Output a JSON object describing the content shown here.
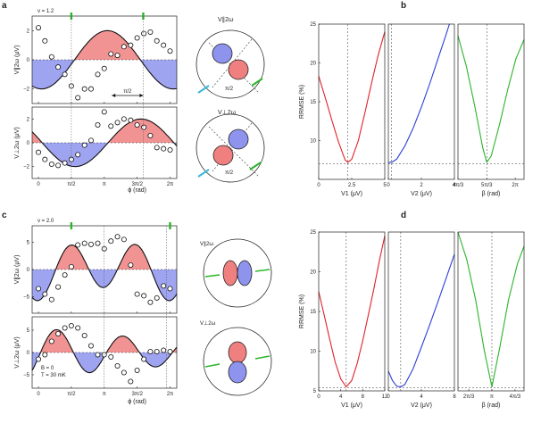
{
  "panels": {
    "a": "a",
    "b": "b",
    "c": "c",
    "d": "d"
  },
  "nu_a": "ν = 1.2",
  "nu_c": "ν = 2.0",
  "ylab_par": "V∥2ω (μV)",
  "ylab_perp": "V⊥2ω (μV)",
  "xlabel_phi": "ϕ (rad)",
  "phi_ticks": [
    "0",
    "π/2",
    "π",
    "3π/2",
    "2π"
  ],
  "a_top_yticks": [
    "2",
    "0",
    "−2"
  ],
  "a_bot_yticks": [
    "2",
    "0",
    "−2"
  ],
  "c_top_yticks": [
    "5",
    "0",
    "−5"
  ],
  "c_bot_yticks": [
    "5",
    "0",
    "−5"
  ],
  "pi2_label": "π/2",
  "circle_par_a": "V∥2ω",
  "circle_perp_a": "V⊥2ω",
  "circle_par_c": "V∥2ω",
  "circle_perp_c": "V⊥2ω",
  "circle_pi2": "π/2",
  "c_params": [
    "B = 0",
    "T = 30 mK"
  ],
  "rrmse_label": "RRMSE (%)",
  "b_yticks": [
    "25",
    "20",
    "15",
    "10"
  ],
  "d_yticks": [
    "25",
    "20",
    "15",
    "10",
    "5"
  ],
  "b_x1": {
    "label": "V1 (μV)",
    "ticks": [
      "0",
      "2.5",
      "5"
    ]
  },
  "b_x2": {
    "label": "V2 (μV)",
    "ticks": [
      "0",
      "2",
      "4"
    ]
  },
  "b_x3": {
    "label": "β (rad)",
    "ticks": [
      "4π/3",
      "5π/3",
      "2π"
    ]
  },
  "d_x1": {
    "label": "V1 (μV)",
    "ticks": [
      "0",
      "4",
      "8",
      "12"
    ]
  },
  "d_x2": {
    "label": "V2 (μV)",
    "ticks": [
      "0",
      "4",
      "8"
    ]
  },
  "d_x3": {
    "label": "β (rad)",
    "ticks": [
      "2π/3",
      "π",
      "4π/3"
    ]
  },
  "colors": {
    "red": "#f08080",
    "blue": "#8e94ee",
    "green": "#2ab52a",
    "cyan": "#36b8d8",
    "line_red": "#e0222a",
    "line_blue": "#2b3fd6",
    "line_green": "#2ab52a"
  },
  "chart_data": [
    {
      "type": "scatter",
      "id": "a-top",
      "xlabel": "ϕ (rad)",
      "ylabel": "V∥2ω (μV)",
      "ylim": [
        -3,
        3
      ],
      "xlim": [
        -0.3,
        6.6
      ],
      "x": [
        0,
        0.31,
        0.63,
        0.94,
        1.26,
        1.57,
        1.88,
        2.2,
        2.51,
        2.83,
        3.14,
        3.46,
        3.77,
        4.08,
        4.4,
        4.71,
        5.03,
        5.34,
        5.65,
        5.97,
        6.28
      ],
      "values": [
        2.2,
        1.3,
        0.2,
        -0.5,
        -1.0,
        -1.8,
        -2.6,
        -2.0,
        -2.0,
        -1.0,
        -0.6,
        0.4,
        0.3,
        0.9,
        1.0,
        1.5,
        1.8,
        1.9,
        1.3,
        1.0,
        0.6
      ]
    },
    {
      "type": "scatter",
      "id": "a-bot",
      "xlabel": "ϕ (rad)",
      "ylabel": "V⊥2ω (μV)",
      "ylim": [
        -3,
        3
      ],
      "xlim": [
        -0.3,
        6.6
      ],
      "x": [
        0,
        0.31,
        0.63,
        0.94,
        1.26,
        1.57,
        1.88,
        2.2,
        2.51,
        2.83,
        3.14,
        3.46,
        3.77,
        4.08,
        4.4,
        4.71,
        5.03,
        5.34,
        5.65,
        5.97,
        6.28
      ],
      "values": [
        -0.8,
        -1.4,
        -1.8,
        -1.9,
        -1.7,
        -1.4,
        -1.0,
        -0.2,
        0.2,
        1.5,
        2.6,
        1.4,
        1.7,
        2.0,
        1.9,
        1.5,
        1.3,
        0.6,
        -0.4,
        -0.5,
        -0.6
      ]
    },
    {
      "type": "scatter",
      "id": "c-top",
      "xlabel": "ϕ (rad)",
      "ylabel": "V∥2ω (μV)",
      "ylim": [
        -8,
        8
      ],
      "xlim": [
        -0.3,
        6.6
      ],
      "x": [
        0,
        0.31,
        0.63,
        0.94,
        1.26,
        1.57,
        1.88,
        2.2,
        2.51,
        2.83,
        3.14,
        3.46,
        3.77,
        4.08,
        4.4,
        4.71,
        5.03,
        5.34,
        5.65,
        5.97,
        6.28
      ],
      "values": [
        -3.5,
        -4.5,
        -5.5,
        -3.2,
        -1.0,
        0.5,
        4.5,
        4.8,
        4.6,
        4.8,
        3.8,
        5.2,
        6.0,
        5.5,
        0.8,
        -4.5,
        -4.8,
        -6.0,
        -5.2,
        -3.0,
        -3.5
      ]
    },
    {
      "type": "scatter",
      "id": "c-bot",
      "xlabel": "ϕ (rad)",
      "ylabel": "V⊥2ω (μV)",
      "ylim": [
        -8,
        8
      ],
      "xlim": [
        -0.3,
        6.6
      ],
      "x": [
        0,
        0.31,
        0.63,
        0.94,
        1.26,
        1.57,
        1.88,
        2.2,
        2.51,
        2.83,
        3.14,
        3.46,
        3.77,
        4.08,
        4.4,
        4.71,
        5.03,
        5.34,
        5.65,
        5.97,
        6.28
      ],
      "values": [
        -1.5,
        -0.5,
        2.5,
        4.2,
        5.5,
        6.0,
        5.5,
        3.8,
        1.5,
        -0.5,
        -0.5,
        -1.0,
        -3.0,
        -4.5,
        -6.5,
        -4.0,
        -1.5,
        0.2,
        0.2,
        0.5,
        0.2
      ]
    },
    {
      "type": "line",
      "id": "b1",
      "xlabel": "V1 (μV)",
      "ylabel": "RRMSE (%)",
      "xlim": [
        0,
        5
      ],
      "ylim": [
        5,
        25
      ],
      "x": [
        0,
        0.5,
        1,
        1.5,
        2,
        2.2,
        2.5,
        3,
        3.5,
        4,
        4.5,
        5
      ],
      "values": [
        18.3,
        15.5,
        12.6,
        9.8,
        7.5,
        7.2,
        7.6,
        10,
        13.6,
        17.4,
        21.0,
        24.0
      ]
    },
    {
      "type": "line",
      "id": "b2",
      "xlabel": "V2 (μV)",
      "ylabel": "RRMSE (%)",
      "xlim": [
        0,
        4
      ],
      "ylim": [
        5,
        25
      ],
      "x": [
        0,
        0.2,
        0.5,
        1,
        1.5,
        2,
        2.5,
        3,
        3.5,
        3.7
      ],
      "values": [
        7.2,
        7.2,
        7.6,
        9.3,
        11.6,
        14.3,
        17.3,
        20.5,
        23.7,
        25
      ]
    },
    {
      "type": "line",
      "id": "b3",
      "xlabel": "β (rad)",
      "ylabel": "RRMSE (%)",
      "xlim": [
        4.19,
        6.6
      ],
      "ylim": [
        5,
        25
      ],
      "x": [
        4.19,
        4.5,
        4.8,
        5.1,
        5.24,
        5.4,
        5.7,
        6.0,
        6.3,
        6.6
      ],
      "values": [
        23.5,
        19.5,
        14.5,
        9,
        7.2,
        8,
        12,
        16.5,
        20.5,
        23
      ]
    },
    {
      "type": "line",
      "id": "d1",
      "xlabel": "V1 (μV)",
      "ylabel": "RRMSE (%)",
      "xlim": [
        0,
        12
      ],
      "ylim": [
        5,
        25
      ],
      "x": [
        0,
        1,
        2,
        3,
        4,
        5,
        6,
        7,
        8,
        9,
        10,
        11,
        12
      ],
      "values": [
        17.5,
        14.5,
        11.5,
        8.6,
        6.5,
        5.5,
        6.3,
        8.5,
        11.3,
        14.5,
        17.8,
        21.3,
        24.5
      ]
    },
    {
      "type": "line",
      "id": "d2",
      "xlabel": "V2 (μV)",
      "ylabel": "RRMSE (%)",
      "xlim": [
        0,
        8
      ],
      "ylim": [
        5,
        25
      ],
      "x": [
        0,
        0.5,
        1,
        1.5,
        2,
        3,
        4,
        5,
        6,
        7,
        8
      ],
      "values": [
        7.5,
        6.3,
        5.6,
        5.5,
        5.8,
        7.8,
        10.5,
        13.3,
        16.2,
        19.2,
        22.2
      ]
    },
    {
      "type": "line",
      "id": "d3",
      "xlabel": "β (rad)",
      "ylabel": "RRMSE (%)",
      "xlim": [
        1.6,
        4.6
      ],
      "ylim": [
        5,
        25
      ],
      "x": [
        1.6,
        2.0,
        2.4,
        2.8,
        3.14,
        3.5,
        3.9,
        4.3,
        4.6
      ],
      "values": [
        25,
        21.5,
        16.5,
        10,
        5.5,
        10.5,
        16.5,
        21,
        23.2
      ]
    }
  ]
}
